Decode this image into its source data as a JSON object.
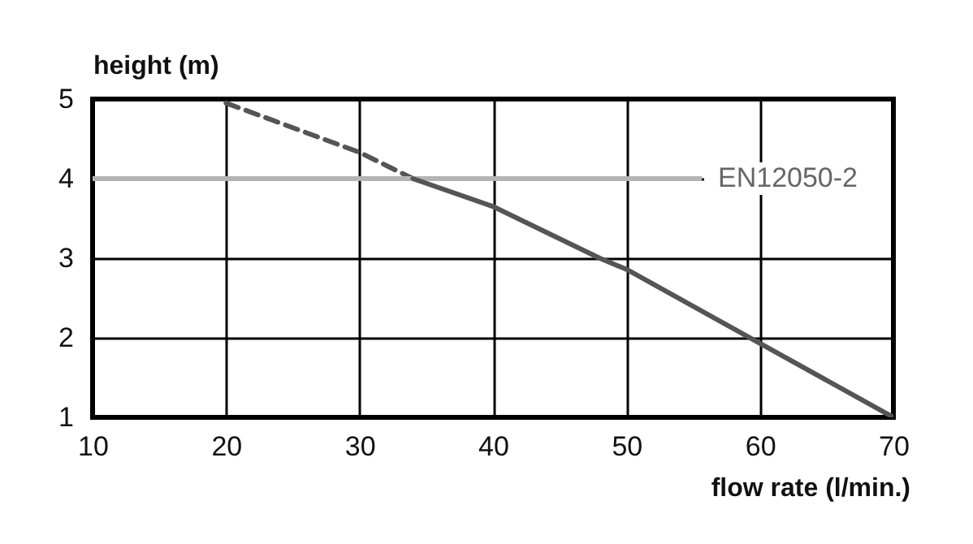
{
  "chart_data": {
    "type": "line",
    "xlabel": "flow rate (l/min.)",
    "ylabel": "height (m)",
    "series": [
      {
        "color": "#555555",
        "line_style": "dashed",
        "x": [
          20,
          30,
          34
        ],
        "values": [
          4.95,
          4.33,
          4.0
        ]
      },
      {
        "color": "#555555",
        "line_style": "solid",
        "x": [
          34,
          40,
          48,
          50,
          60,
          70
        ],
        "values": [
          4.0,
          3.65,
          3.0,
          2.86,
          1.93,
          1.0
        ]
      }
    ],
    "xlim": [
      10,
      70
    ],
    "xticks": [
      10,
      20,
      30,
      40,
      50,
      60,
      70
    ],
    "ylim": [
      1,
      5
    ],
    "yticks": [
      1,
      2,
      3,
      4,
      5
    ],
    "grid": true,
    "marker": "none",
    "ref_lines": [
      {
        "axis": "y",
        "value": 4,
        "label": "EN12050-2",
        "color": "#b4b4b4"
      }
    ]
  }
}
